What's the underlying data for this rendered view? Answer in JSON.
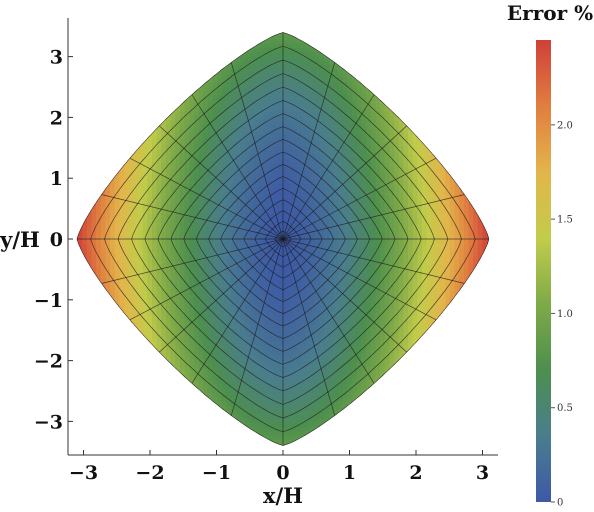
{
  "chart_data": {
    "type": "heatmap",
    "title": "",
    "xlabel": "x/H",
    "ylabel": "y/H",
    "xlim": [
      -3.3,
      3.3
    ],
    "ylim": [
      -3.5,
      3.5
    ],
    "xticks": [
      -3,
      -2,
      -1,
      0,
      1,
      2,
      3
    ],
    "yticks": [
      -3,
      -2,
      -1,
      0,
      1,
      2,
      3
    ],
    "xtick_labels": [
      "−3",
      "−2",
      "−1",
      "0",
      "1",
      "2",
      "3"
    ],
    "ytick_labels": [
      "−3",
      "−2",
      "−1",
      "0",
      "1",
      "2",
      "3"
    ],
    "domain_shape": "rounded diamond, |x|/3.1 + |y|/3.4 <= 1 with rounded corners",
    "mesh": {
      "radial_rings": 17,
      "spokes": 24,
      "grid": true
    },
    "colorbar": {
      "title": "Error %",
      "range": [
        0,
        2.45
      ],
      "ticks": [
        0,
        0.5,
        1.0,
        1.5,
        2.0
      ],
      "tick_labels": [
        "0",
        "0.5",
        "1.0",
        "1.5",
        "2.0"
      ],
      "colormap": [
        "#3d59a6",
        "#4a7d8e",
        "#4d8f4e",
        "#7faa48",
        "#c2cc4a",
        "#e3b54b",
        "#e07e40",
        "#cf4038"
      ]
    },
    "field": {
      "description": "error grows with |x|; minimum at center, maxima at left and right vertices",
      "center_value": 0.0,
      "top_bottom_vertex_value": 0.85,
      "left_right_vertex_value": 2.45
    }
  }
}
